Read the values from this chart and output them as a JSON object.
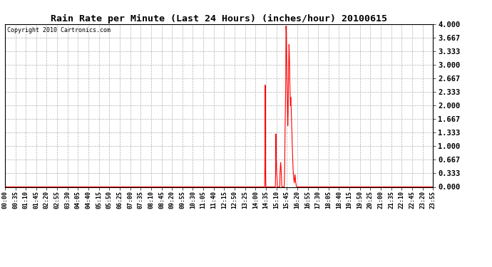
{
  "title": "Rain Rate per Minute (Last 24 Hours) (inches/hour) 20100615",
  "copyright": "Copyright 2010 Cartronics.com",
  "background_color": "#ffffff",
  "plot_bg_color": "#ffffff",
  "line_color": "#ff0000",
  "grid_color": "#b0b0b0",
  "ylim": [
    0.0,
    4.0
  ],
  "yticks": [
    0.0,
    0.333,
    0.667,
    1.0,
    1.333,
    1.667,
    2.0,
    2.333,
    2.667,
    3.0,
    3.333,
    3.667,
    4.0
  ],
  "ytick_labels": [
    "0.000",
    "0.333",
    "0.667",
    "1.000",
    "1.333",
    "1.667",
    "2.000",
    "2.333",
    "2.667",
    "3.000",
    "3.333",
    "3.667",
    "4.000"
  ],
  "x_labels": [
    "00:00",
    "00:35",
    "01:10",
    "01:45",
    "02:20",
    "02:55",
    "03:30",
    "04:05",
    "04:40",
    "05:15",
    "05:50",
    "06:25",
    "07:00",
    "07:35",
    "08:10",
    "08:45",
    "09:20",
    "09:55",
    "10:30",
    "11:05",
    "11:40",
    "12:15",
    "12:50",
    "13:25",
    "14:00",
    "14:35",
    "15:10",
    "15:45",
    "16:20",
    "16:55",
    "17:30",
    "18:05",
    "18:40",
    "19:15",
    "19:50",
    "20:25",
    "21:00",
    "21:35",
    "22:10",
    "22:45",
    "23:20",
    "23:55"
  ],
  "total_minutes": 1440,
  "figsize": [
    6.9,
    3.75
  ],
  "dpi": 100
}
